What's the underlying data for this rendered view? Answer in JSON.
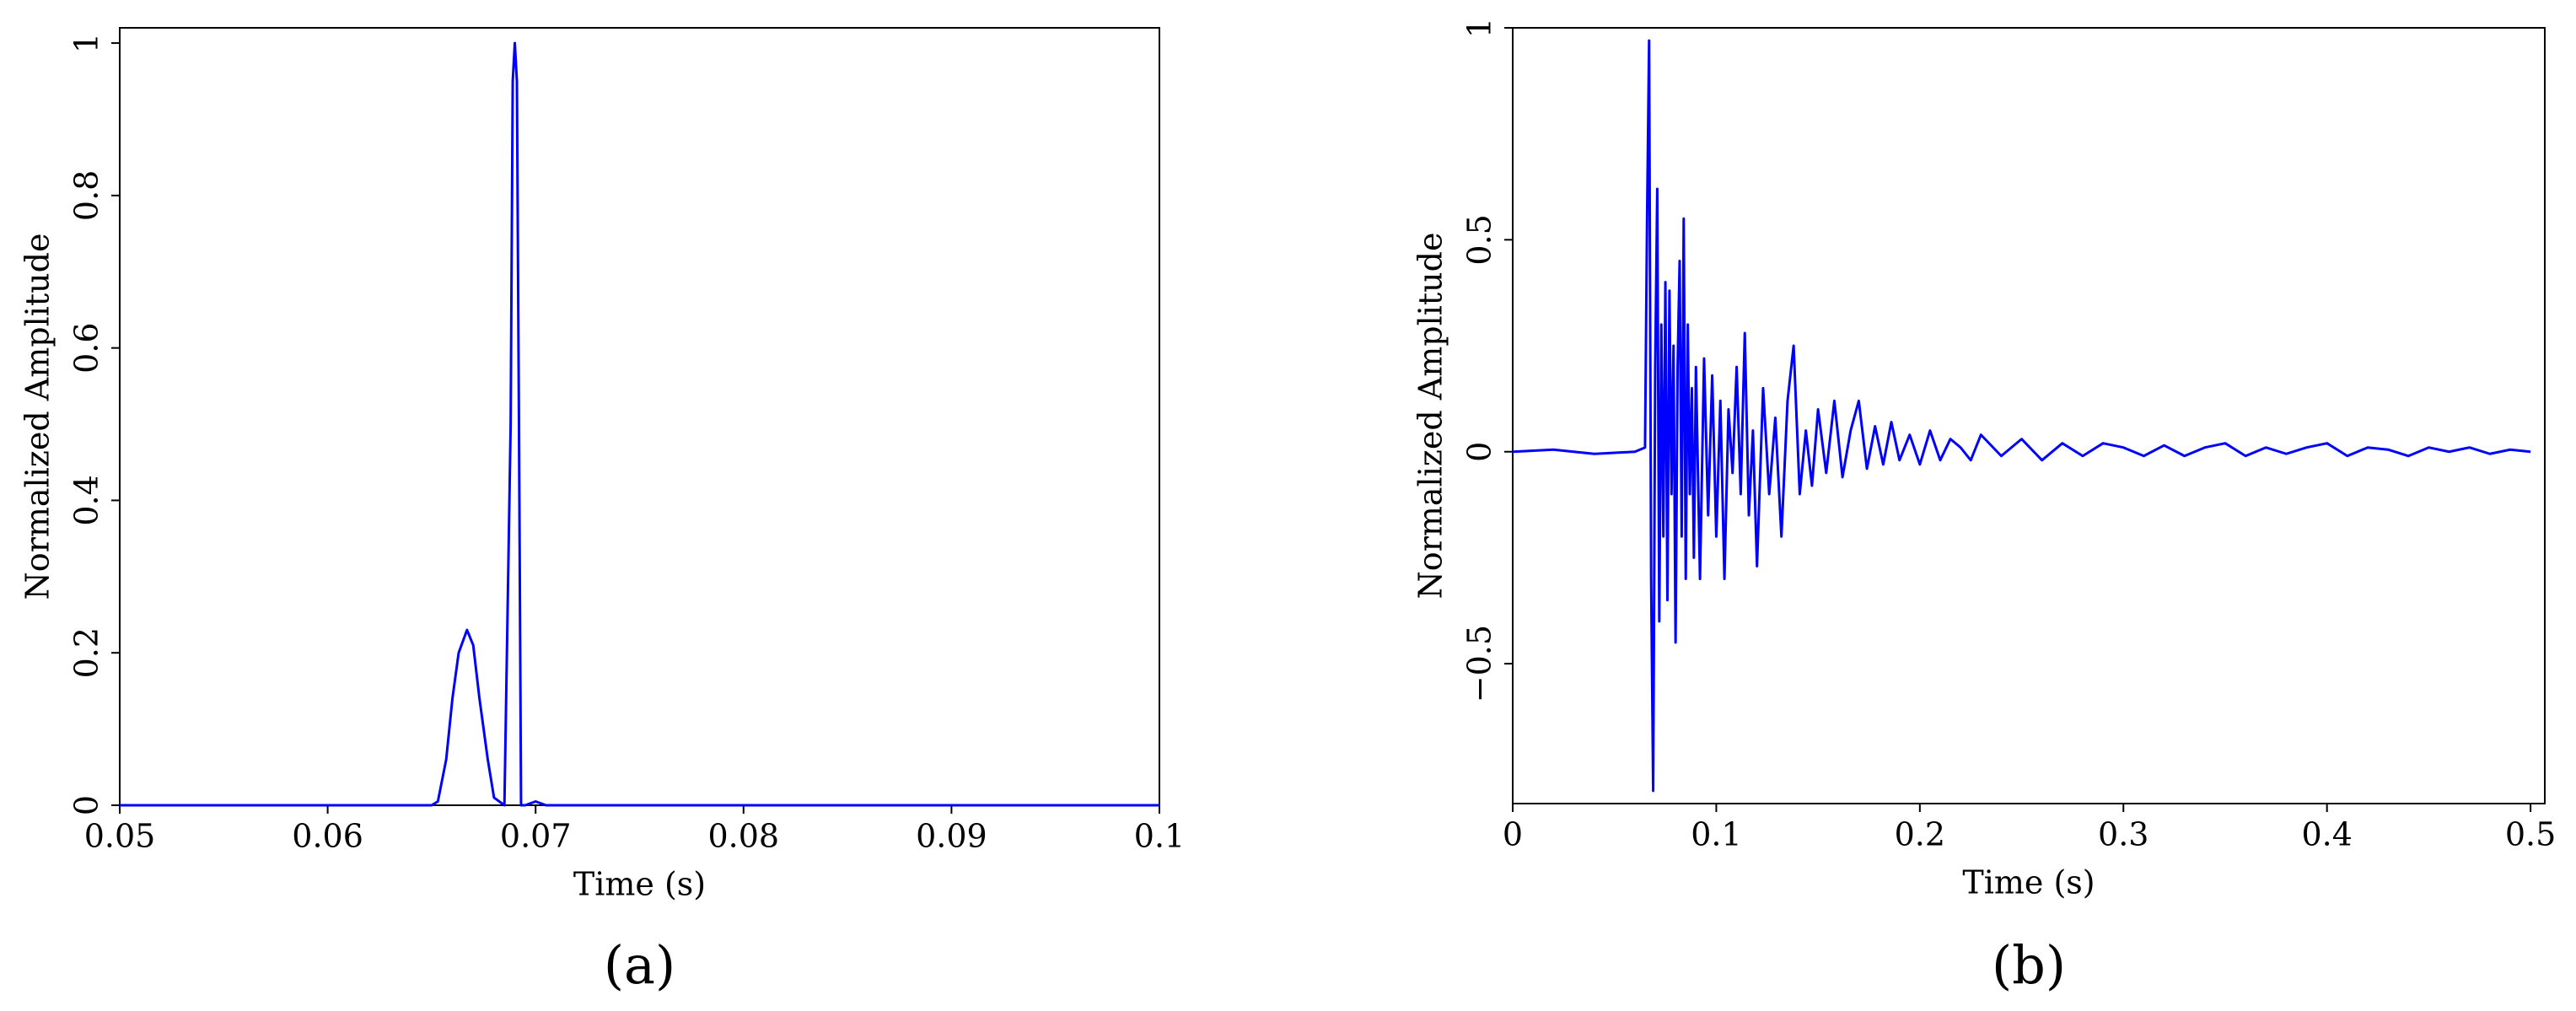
{
  "chart_data": [
    {
      "type": "line",
      "caption": "(a)",
      "x_label": "Time (s)",
      "y_label": "Normalized Amplitude",
      "xlim": [
        0.05,
        0.1
      ],
      "ylim": [
        0,
        1.02
      ],
      "xticks": [
        0.05,
        0.06,
        0.07,
        0.08,
        0.09,
        0.1
      ],
      "yticks": [
        0,
        0.2,
        0.4,
        0.6,
        0.8,
        1
      ],
      "color": "#0000ff",
      "x": [
        0.05,
        0.065,
        0.0653,
        0.0657,
        0.066,
        0.0663,
        0.0667,
        0.067,
        0.0673,
        0.0677,
        0.068,
        0.0685,
        0.0688,
        0.0689,
        0.069,
        0.0691,
        0.0692,
        0.0693,
        0.0695,
        0.07,
        0.0705,
        0.1
      ],
      "values": [
        0,
        0,
        0.005,
        0.06,
        0.14,
        0.2,
        0.23,
        0.21,
        0.14,
        0.06,
        0.01,
        0,
        0.5,
        0.95,
        1,
        0.95,
        0.5,
        0,
        0,
        0.005,
        0,
        0
      ]
    },
    {
      "type": "line",
      "caption": "(b)",
      "x_label": "Time (s)",
      "y_label": "Normalized Amplitude",
      "xlim": [
        0,
        0.507
      ],
      "ylim": [
        -0.83,
        1
      ],
      "xticks": [
        0,
        0.1,
        0.2,
        0.3,
        0.4,
        0.5
      ],
      "yticks": [
        {
          "value": -0.5,
          "label": "−0.5"
        },
        0,
        0.5,
        1
      ],
      "color": "#0000ff",
      "x": [
        0,
        0.02,
        0.04,
        0.06,
        0.065,
        0.066,
        0.067,
        0.068,
        0.069,
        0.07,
        0.071,
        0.072,
        0.073,
        0.074,
        0.075,
        0.076,
        0.077,
        0.078,
        0.079,
        0.08,
        0.081,
        0.082,
        0.083,
        0.084,
        0.085,
        0.086,
        0.087,
        0.088,
        0.089,
        0.09,
        0.092,
        0.094,
        0.096,
        0.098,
        0.1,
        0.102,
        0.104,
        0.106,
        0.108,
        0.11,
        0.112,
        0.114,
        0.116,
        0.118,
        0.12,
        0.123,
        0.126,
        0.129,
        0.132,
        0.135,
        0.138,
        0.141,
        0.144,
        0.147,
        0.15,
        0.154,
        0.158,
        0.162,
        0.166,
        0.17,
        0.174,
        0.178,
        0.182,
        0.186,
        0.19,
        0.195,
        0.2,
        0.205,
        0.21,
        0.215,
        0.22,
        0.225,
        0.23,
        0.24,
        0.25,
        0.26,
        0.27,
        0.28,
        0.29,
        0.3,
        0.31,
        0.32,
        0.33,
        0.34,
        0.35,
        0.36,
        0.37,
        0.38,
        0.39,
        0.4,
        0.41,
        0.42,
        0.43,
        0.44,
        0.45,
        0.46,
        0.47,
        0.48,
        0.49,
        0.5
      ],
      "values": [
        0,
        0.005,
        -0.005,
        0,
        0.01,
        0.55,
        0.97,
        -0.3,
        -0.8,
        0.2,
        0.62,
        -0.4,
        0.3,
        -0.2,
        0.4,
        -0.35,
        0.38,
        -0.1,
        0.25,
        -0.45,
        0.2,
        0.45,
        -0.2,
        0.55,
        -0.3,
        0.3,
        -0.1,
        0.15,
        -0.25,
        0.2,
        -0.3,
        0.22,
        -0.15,
        0.18,
        -0.2,
        0.12,
        -0.3,
        0.1,
        -0.05,
        0.2,
        -0.1,
        0.28,
        -0.15,
        0.05,
        -0.27,
        0.15,
        -0.1,
        0.08,
        -0.2,
        0.12,
        0.25,
        -0.1,
        0.05,
        -0.08,
        0.1,
        -0.05,
        0.12,
        -0.06,
        0.05,
        0.12,
        -0.04,
        0.06,
        -0.03,
        0.07,
        -0.02,
        0.04,
        -0.03,
        0.05,
        -0.02,
        0.03,
        0.01,
        -0.02,
        0.04,
        -0.01,
        0.03,
        -0.02,
        0.02,
        -0.01,
        0.02,
        0.01,
        -0.01,
        0.015,
        -0.01,
        0.01,
        0.02,
        -0.01,
        0.01,
        -0.005,
        0.01,
        0.02,
        -0.01,
        0.01,
        0.005,
        -0.01,
        0.01,
        0,
        0.01,
        -0.005,
        0.005,
        0
      ]
    }
  ]
}
